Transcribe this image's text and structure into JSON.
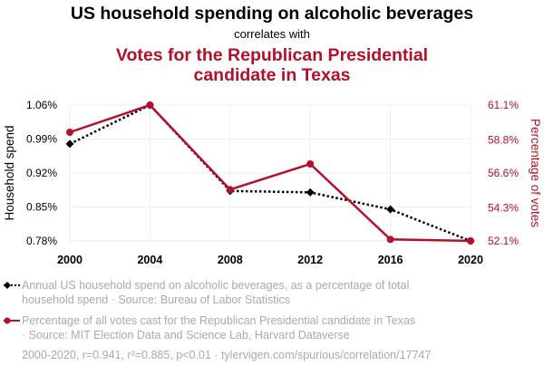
{
  "header": {
    "title": "US household spending on alcoholic beverages",
    "subtitle": "correlates with",
    "title2_line1": "Votes for the Republican Presidential",
    "title2_line2": "candidate in Texas"
  },
  "colors": {
    "series1": "#000000",
    "series2": "#b3102a",
    "legend_text": "#aaaaaa",
    "grid": "#eeeeee"
  },
  "legend": {
    "item1_line1": "Annual US household spend on alcoholic beverages, as a percentage of total",
    "item1_line2": "household spend · Source: Bureau of Labor Statistics",
    "item2_line1": "Percentage of all votes cast for the Republican Presidential candidate in Texas",
    "item2_line2": " · Source: MIT Election Data and Science Lab, Harvard Dataverse"
  },
  "footer": {
    "stats": "2000-2020, r=0.941, r²=0.885, p<0.01 · tylervigen.com/spurious/correlation/17747"
  },
  "chart_data": {
    "type": "line",
    "categories": [
      "2000",
      "2004",
      "2008",
      "2012",
      "2016",
      "2020"
    ],
    "x": [
      2000,
      2004,
      2008,
      2012,
      2016,
      2020
    ],
    "xlim": [
      2000,
      2020
    ],
    "grid": true,
    "ylabel_left": "Household spend",
    "ylabel_right": "Percentage of votes",
    "y_left": {
      "lim": [
        0.78,
        1.06
      ],
      "ticks": [
        0.78,
        0.85,
        0.92,
        0.99,
        1.06
      ],
      "tick_labels": [
        "0.78%",
        "0.85%",
        "0.92%",
        "0.99%",
        "1.06%"
      ]
    },
    "y_right": {
      "lim": [
        52.1,
        61.1
      ],
      "ticks": [
        52.1,
        54.3,
        56.6,
        58.8,
        61.1
      ],
      "tick_labels": [
        "52.1%",
        "54.3%",
        "56.6%",
        "58.8%",
        "61.1%"
      ]
    },
    "series": [
      {
        "axis": "left",
        "style": "dotted",
        "marker": "diamond",
        "values": [
          0.98,
          1.06,
          0.883,
          0.88,
          0.845,
          0.78
        ]
      },
      {
        "axis": "right",
        "style": "solid",
        "marker": "circle",
        "values": [
          59.3,
          61.1,
          55.5,
          57.2,
          52.2,
          52.1
        ]
      }
    ]
  }
}
